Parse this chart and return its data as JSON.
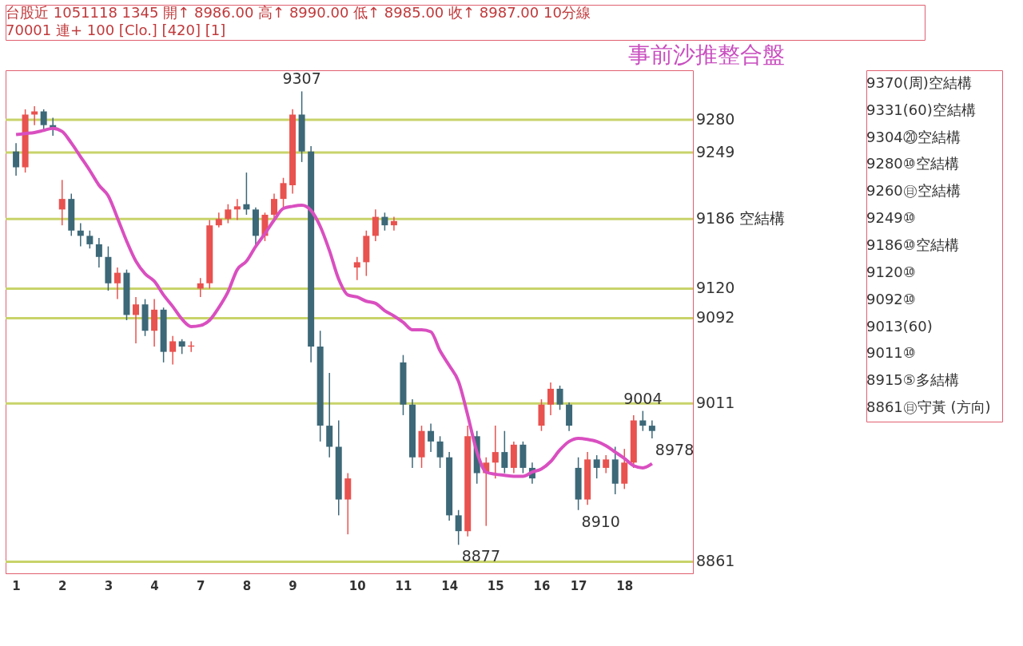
{
  "chart_data": {
    "type": "candlestick",
    "title": "事前沙推整合盤",
    "categories": [
      "1",
      null,
      null,
      null,
      null,
      "2",
      null,
      null,
      null,
      null,
      "3",
      null,
      null,
      null,
      null,
      "4",
      null,
      null,
      null,
      null,
      "7",
      null,
      null,
      null,
      null,
      "8",
      null,
      null,
      null,
      null,
      "9",
      null,
      null,
      null,
      null,
      null,
      null,
      "10",
      null,
      null,
      null,
      null,
      "11",
      null,
      null,
      null,
      null,
      "14",
      null,
      null,
      null,
      null,
      "15",
      null,
      null,
      null,
      null,
      "16",
      null,
      null,
      null,
      "17",
      null,
      null,
      null,
      null,
      "18",
      null,
      null,
      null
    ],
    "ohlc": [
      [
        9250,
        9258,
        9227,
        9235
      ],
      [
        9235,
        9290,
        9230,
        9285
      ],
      [
        9285,
        9293,
        9275,
        9288
      ],
      [
        9288,
        9290,
        9270,
        9275
      ],
      [
        9275,
        9282,
        9265,
        9272
      ],
      [
        9195,
        9223,
        9180,
        9205
      ],
      [
        9205,
        9210,
        9170,
        9175
      ],
      [
        9175,
        9182,
        9160,
        9170
      ],
      [
        9170,
        9175,
        9158,
        9162
      ],
      [
        9162,
        9168,
        9140,
        9150
      ],
      [
        9150,
        9160,
        9118,
        9125
      ],
      [
        9125,
        9140,
        9110,
        9135
      ],
      [
        9135,
        9138,
        9090,
        9095
      ],
      [
        9095,
        9112,
        9068,
        9105
      ],
      [
        9105,
        9110,
        9075,
        9080
      ],
      [
        9080,
        9110,
        9065,
        9100
      ],
      [
        9100,
        9102,
        9050,
        9060
      ],
      [
        9060,
        9075,
        9048,
        9070
      ],
      [
        9070,
        9072,
        9058,
        9065
      ],
      [
        9065,
        9070,
        9060,
        9066
      ],
      [
        9120,
        9130,
        9112,
        9125
      ],
      [
        9125,
        9185,
        9120,
        9180
      ],
      [
        9180,
        9192,
        9178,
        9186
      ],
      [
        9186,
        9200,
        9182,
        9195
      ],
      [
        9195,
        9205,
        9185,
        9198
      ],
      [
        9200,
        9230,
        9190,
        9195
      ],
      [
        9195,
        9197,
        9162,
        9170
      ],
      [
        9170,
        9192,
        9165,
        9190
      ],
      [
        9190,
        9210,
        9185,
        9205
      ],
      [
        9205,
        9225,
        9195,
        9220
      ],
      [
        9218,
        9290,
        9210,
        9285
      ],
      [
        9285,
        9307,
        9240,
        9250
      ],
      [
        9250,
        9255,
        9050,
        9065
      ],
      [
        9065,
        9080,
        8975,
        8990
      ],
      [
        8990,
        9040,
        8960,
        8970
      ],
      [
        8970,
        8995,
        8905,
        8920
      ],
      [
        8920,
        8945,
        8887,
        8940
      ],
      [
        9140,
        9150,
        9128,
        9145
      ],
      [
        9145,
        9175,
        9132,
        9170
      ],
      [
        9170,
        9195,
        9165,
        9188
      ],
      [
        9188,
        9192,
        9175,
        9180
      ],
      [
        9180,
        9188,
        9175,
        9184
      ],
      [
        9050,
        9057,
        9000,
        9010
      ],
      [
        9010,
        9015,
        8950,
        8960
      ],
      [
        8960,
        8990,
        8950,
        8985
      ],
      [
        8985,
        8992,
        8965,
        8975
      ],
      [
        8975,
        8980,
        8950,
        8960
      ],
      [
        8960,
        8965,
        8900,
        8905
      ],
      [
        8905,
        8910,
        8877,
        8890
      ],
      [
        8890,
        8990,
        8885,
        8980
      ],
      [
        8980,
        8985,
        8935,
        8945
      ],
      [
        8945,
        8960,
        8895,
        8955
      ],
      [
        8955,
        8990,
        8940,
        8965
      ],
      [
        8965,
        8985,
        8945,
        8950
      ],
      [
        8950,
        8975,
        8945,
        8972
      ],
      [
        8972,
        8975,
        8945,
        8950
      ],
      [
        8950,
        8955,
        8935,
        8940
      ],
      [
        8990,
        9015,
        8985,
        9010
      ],
      [
        9010,
        9031,
        9000,
        9025
      ],
      [
        9025,
        9028,
        9005,
        9010
      ],
      [
        9010,
        9012,
        8985,
        8990
      ],
      [
        8950,
        8960,
        8910,
        8920
      ],
      [
        8920,
        8965,
        8915,
        8958
      ],
      [
        8958,
        8962,
        8940,
        8950
      ],
      [
        8950,
        8962,
        8945,
        8958
      ],
      [
        8958,
        8970,
        8925,
        8935
      ],
      [
        8935,
        8968,
        8930,
        8955
      ],
      [
        8955,
        9000,
        8950,
        8995
      ],
      [
        8995,
        9004,
        8985,
        8990
      ],
      [
        8990,
        8995,
        8978,
        8985
      ]
    ],
    "value_labels": [
      null,
      null,
      null,
      null,
      null,
      null,
      null,
      null,
      null,
      null,
      null,
      null,
      null,
      null,
      null,
      null,
      null,
      null,
      null,
      null,
      null,
      null,
      null,
      null,
      null,
      null,
      null,
      null,
      null,
      null,
      null,
      "9307",
      null,
      null,
      null,
      null,
      null,
      null,
      null,
      null,
      null,
      null,
      null,
      null,
      null,
      null,
      null,
      null,
      "8877",
      null,
      null,
      null,
      null,
      null,
      null,
      null,
      null,
      null,
      null,
      null,
      null,
      "8910",
      null,
      null,
      null,
      null,
      null,
      null,
      "9004",
      "8978"
    ],
    "series": [
      {
        "type": "line",
        "color": "#d94fc0",
        "values": [
          9266,
          9267,
          9268,
          9270,
          9272,
          9269,
          9258,
          9245,
          9232,
          9218,
          9208,
          9187,
          9165,
          9146,
          9134,
          9127,
          9114,
          9103,
          9091,
          9084,
          9085,
          9090,
          9102,
          9117,
          9138,
          9146,
          9160,
          9172,
          9185,
          9196,
          9198,
          9199,
          9194,
          9179,
          9156,
          9129,
          9114,
          9112,
          9108,
          9106,
          9099,
          9094,
          9088,
          9081,
          9081,
          9079,
          9061,
          9047,
          9032,
          9000,
          8965,
          8946,
          8944,
          8943,
          8942,
          8942,
          8946,
          8949,
          8956,
          8967,
          8975,
          8978,
          8977,
          8975,
          8971,
          8965,
          8959,
          8952,
          8950,
          8954
        ]
      }
    ],
    "ylim": [
      8850,
      9327
    ],
    "tick_labels": "x",
    "grid": false,
    "ref_lines": [
      {
        "axis": "y",
        "value": 9280,
        "label": "9280",
        "color": "#c8d36a"
      },
      {
        "axis": "y",
        "value": 9249,
        "label": "9249",
        "color": "#c8d36a"
      },
      {
        "axis": "y",
        "value": 9186,
        "label": "9186 空結構",
        "color": "#c8d36a"
      },
      {
        "axis": "y",
        "value": 9120,
        "label": "9120",
        "color": "#c8d36a"
      },
      {
        "axis": "y",
        "value": 9092,
        "label": "9092",
        "color": "#c8d36a"
      },
      {
        "axis": "y",
        "value": 9011,
        "label": "9011",
        "color": "#c8d36a"
      },
      {
        "axis": "y",
        "value": 8861,
        "label": "8861",
        "color": "#c8d36a"
      }
    ],
    "annotations": [
      "台股近 1051118 1345 開↑ 8986.00 高↑ 8990.00 低↑ 8985.00 收↑ 8987.00 10分線",
      "70001 連+ 100 [Clo.] [420] [1]",
      "9370(周)空結構",
      "9331(60)空結構",
      "9304⑳空結構",
      "9280⑩空結構",
      "9260㊐空結構",
      "9249⑩",
      "9186⑩空結構",
      "9120⑩",
      "9092⑩",
      "9013(60)",
      "9011⑩",
      "8915⑤多結構",
      "8861㊐守黃 (方向)"
    ]
  }
}
